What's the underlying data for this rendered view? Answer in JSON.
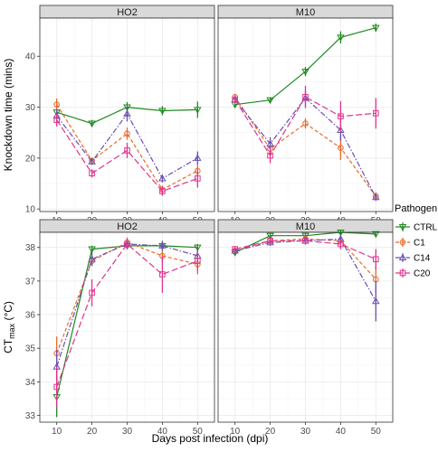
{
  "chart_data": {
    "type": "line",
    "layout": "2x2 facet grid (rows: metric, columns: strain)",
    "x": [
      10,
      20,
      30,
      40,
      50
    ],
    "xlabel": "Days post infection (dpi)",
    "xticks": [
      "10",
      "20",
      "30",
      "40",
      "50"
    ],
    "columns": [
      "HO2",
      "M10"
    ],
    "legend": {
      "title": "Pathogen",
      "placement": "right",
      "entries": [
        "CTRL",
        "C1",
        "C14",
        "C20"
      ]
    },
    "series_styles": [
      {
        "name": "CTRL",
        "color": "#1e8a1e",
        "dash": "solid",
        "marker": "triangle-down"
      },
      {
        "name": "C1",
        "color": "#e8692a",
        "dash": "dashed",
        "marker": "circle"
      },
      {
        "name": "C14",
        "color": "#6a4fb0",
        "dash": "dash-dot",
        "marker": "triangle-up"
      },
      {
        "name": "C20",
        "color": "#e0338f",
        "dash": "long-dash",
        "marker": "square"
      }
    ],
    "rows": [
      {
        "ylabel": "Knockdown time (mins)",
        "ylim": [
          9.5,
          47.5
        ],
        "yticks": [
          10,
          20,
          30,
          40
        ],
        "panels": [
          {
            "strip": "HO2",
            "series": [
              {
                "name": "CTRL",
                "values": [
                  29.0,
                  26.8,
                  30.0,
                  29.3,
                  29.5
                ],
                "err": [
                  0.8,
                  0.7,
                  1.0,
                  0.9,
                  1.6
                ]
              },
              {
                "name": "C1",
                "values": [
                  30.5,
                  19.5,
                  24.8,
                  13.8,
                  17.5
                ],
                "err": [
                  1.2,
                  0.6,
                  1.2,
                  0.8,
                  1.2
                ]
              },
              {
                "name": "C14",
                "values": [
                  28.3,
                  19.3,
                  28.7,
                  16.0,
                  20.0
                ],
                "err": [
                  1.3,
                  0.6,
                  1.5,
                  0.8,
                  1.3
                ]
              },
              {
                "name": "C20",
                "values": [
                  27.5,
                  17.0,
                  21.5,
                  13.5,
                  16.0
                ],
                "err": [
                  1.3,
                  0.8,
                  1.5,
                  0.9,
                  1.8
                ]
              }
            ]
          },
          {
            "strip": "M10",
            "series": [
              {
                "name": "CTRL",
                "values": [
                  30.5,
                  31.4,
                  37.0,
                  43.7,
                  45.6
                ],
                "err": [
                  0.5,
                  0.5,
                  0.9,
                  1.2,
                  0.8
                ]
              },
              {
                "name": "C1",
                "values": [
                  32.0,
                  21.8,
                  26.8,
                  22.0,
                  12.5
                ],
                "err": [
                  0.6,
                  1.3,
                  1.0,
                  2.4,
                  0.8
                ]
              },
              {
                "name": "C14",
                "values": [
                  31.5,
                  22.8,
                  31.8,
                  25.5,
                  12.3
                ],
                "err": [
                  0.6,
                  1.3,
                  1.5,
                  2.1,
                  0.7
                ]
              },
              {
                "name": "C20",
                "values": [
                  31.5,
                  20.5,
                  32.0,
                  28.2,
                  28.8
                ],
                "err": [
                  0.8,
                  1.5,
                  2.2,
                  3.0,
                  3.0
                ]
              }
            ]
          }
        ]
      },
      {
        "ylabel": "CT",
        "ylabel_sub": "max",
        "ylabel_suffix": " (°C)",
        "ylim": [
          32.8,
          38.45
        ],
        "yticks": [
          33,
          34,
          35,
          36,
          37,
          38
        ],
        "panels": [
          {
            "strip": "HO2",
            "series": [
              {
                "name": "CTRL",
                "values": [
                  33.55,
                  37.95,
                  38.05,
                  38.05,
                  38.0
                ],
                "err": [
                  0.6,
                  0.1,
                  0.1,
                  0.1,
                  0.1
                ]
              },
              {
                "name": "C1",
                "values": [
                  34.85,
                  37.6,
                  38.15,
                  37.75,
                  37.5
                ],
                "err": [
                  0.5,
                  0.15,
                  0.15,
                  0.2,
                  0.3
                ]
              },
              {
                "name": "C14",
                "values": [
                  34.45,
                  37.65,
                  38.1,
                  38.05,
                  37.75
                ],
                "err": [
                  0.5,
                  0.2,
                  0.15,
                  0.15,
                  0.2
                ]
              },
              {
                "name": "C20",
                "values": [
                  33.85,
                  36.65,
                  38.1,
                  37.2,
                  37.6
                ],
                "err": [
                  0.6,
                  0.4,
                  0.15,
                  0.55,
                  0.3
                ]
              }
            ]
          },
          {
            "strip": "M10",
            "series": [
              {
                "name": "CTRL",
                "values": [
                  37.85,
                  38.35,
                  38.35,
                  38.45,
                  38.4
                ],
                "err": [
                  0.08,
                  0.08,
                  0.08,
                  0.08,
                  0.08
                ]
              },
              {
                "name": "C1",
                "values": [
                  37.9,
                  38.2,
                  38.25,
                  38.2,
                  37.05
                ],
                "err": [
                  0.08,
                  0.1,
                  0.1,
                  0.15,
                  0.4
                ]
              },
              {
                "name": "C14",
                "values": [
                  37.9,
                  38.15,
                  38.2,
                  38.25,
                  36.4
                ],
                "err": [
                  0.08,
                  0.1,
                  0.1,
                  0.1,
                  0.6
                ]
              },
              {
                "name": "C20",
                "values": [
                  37.95,
                  38.2,
                  38.2,
                  38.1,
                  37.65
                ],
                "err": [
                  0.08,
                  0.1,
                  0.12,
                  0.15,
                  0.3
                ]
              }
            ]
          }
        ]
      }
    ]
  }
}
